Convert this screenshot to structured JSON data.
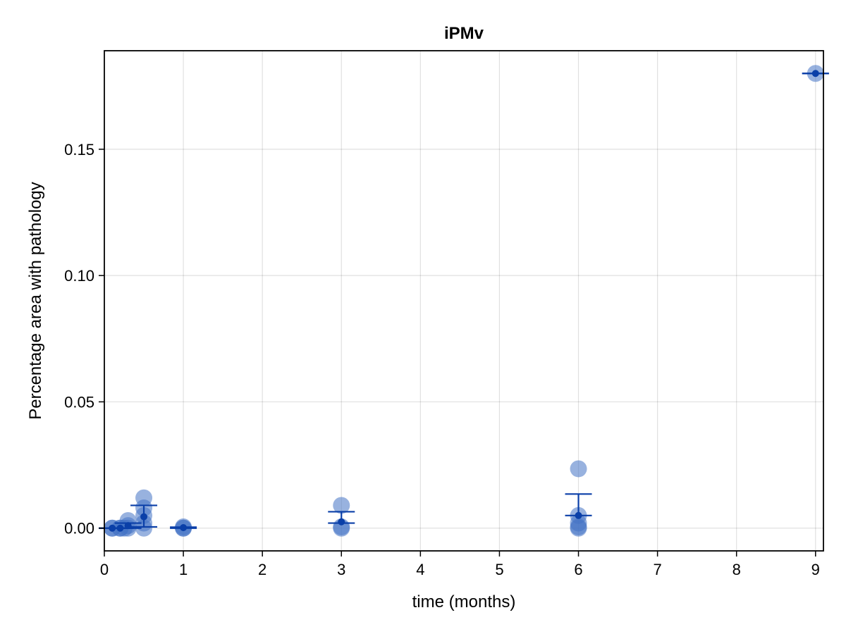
{
  "chart_data": {
    "type": "scatter",
    "title": "iPMv",
    "xlabel": "time (months)",
    "ylabel": "Percentage area with pathology",
    "xlim": [
      0,
      9.1
    ],
    "ylim": [
      -0.009,
      0.189
    ],
    "xticks": [
      0,
      1,
      2,
      3,
      4,
      5,
      6,
      7,
      8,
      9
    ],
    "yticks": [
      0.0,
      0.05,
      0.1,
      0.15
    ],
    "ytick_labels": [
      "0.00",
      "0.05",
      "0.10",
      "0.15"
    ],
    "grid": true,
    "colors": {
      "points": "#4472c4",
      "mean": "#0a3fa8",
      "errorbar": "#0a3fa8"
    },
    "series": [
      {
        "points": [
          {
            "x": 0.1,
            "y": 0.0
          },
          {
            "x": 0.1,
            "y": 0.0
          },
          {
            "x": 0.2,
            "y": 0.0
          },
          {
            "x": 0.2,
            "y": 0.0
          },
          {
            "x": 0.25,
            "y": 0.0
          },
          {
            "x": 0.3,
            "y": 0.003
          },
          {
            "x": 0.3,
            "y": 0.0
          },
          {
            "x": 0.3,
            "y": 0.001
          },
          {
            "x": 0.5,
            "y": 0.012
          },
          {
            "x": 0.5,
            "y": 0.008
          },
          {
            "x": 0.5,
            "y": 0.005
          },
          {
            "x": 0.5,
            "y": 0.002
          },
          {
            "x": 0.5,
            "y": 0.0
          },
          {
            "x": 1.0,
            "y": 0.0
          },
          {
            "x": 1.0,
            "y": 0.0005
          },
          {
            "x": 1.0,
            "y": 0.0
          },
          {
            "x": 3.0,
            "y": 0.009
          },
          {
            "x": 3.0,
            "y": 0.0005
          },
          {
            "x": 3.0,
            "y": 0.0
          },
          {
            "x": 6.0,
            "y": 0.0235
          },
          {
            "x": 6.0,
            "y": 0.005
          },
          {
            "x": 6.0,
            "y": 0.002
          },
          {
            "x": 6.0,
            "y": 0.0005
          },
          {
            "x": 6.0,
            "y": 0.0
          },
          {
            "x": 9.0,
            "y": 0.18
          }
        ],
        "summary": [
          {
            "x": 0.1,
            "mean": 0.0,
            "lo": 0.0,
            "hi": 0.0
          },
          {
            "x": 0.2,
            "mean": 0.0,
            "lo": 0.0,
            "hi": 0.0
          },
          {
            "x": 0.3,
            "mean": 0.001,
            "lo": 0.0,
            "hi": 0.002
          },
          {
            "x": 0.5,
            "mean": 0.0045,
            "lo": 0.0005,
            "hi": 0.009
          },
          {
            "x": 1.0,
            "mean": 0.0002,
            "lo": 0.0,
            "hi": 0.0004
          },
          {
            "x": 3.0,
            "mean": 0.0025,
            "lo": 0.002,
            "hi": 0.0065
          },
          {
            "x": 6.0,
            "mean": 0.005,
            "lo": 0.005,
            "hi": 0.0135
          },
          {
            "x": 9.0,
            "mean": 0.18,
            "lo": 0.18,
            "hi": 0.18
          }
        ]
      }
    ]
  }
}
